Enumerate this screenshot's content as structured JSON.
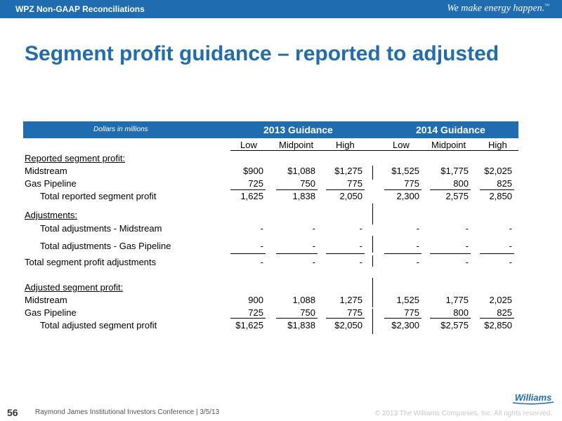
{
  "header": {
    "section": "WPZ Non-GAAP Reconciliations",
    "tagline": "We make energy happen.",
    "tm": "™"
  },
  "title": "Segment profit guidance – reported to adjusted",
  "table": {
    "units": "Dollars in millions",
    "group_2013": "2013 Guidance",
    "group_2014": "2014 Guidance",
    "cols": [
      "Low",
      "Midpoint",
      "High",
      "Low",
      "Midpoint",
      "High"
    ],
    "rows": [
      {
        "label": "Reported segment profit:",
        "values": []
      },
      {
        "label": "Midstream",
        "values": [
          "$900",
          "$1,088",
          "$1,275",
          "$1,525",
          "$1,775",
          "$2,025"
        ]
      },
      {
        "label": "Gas Pipeline",
        "values": [
          "725",
          "750",
          "775",
          "775",
          "800",
          "825"
        ]
      },
      {
        "label": "Total reported segment profit",
        "values": [
          "1,625",
          "1,838",
          "2,050",
          "2,300",
          "2,575",
          "2,850"
        ]
      },
      {
        "label": "Adjustments:",
        "values": []
      },
      {
        "label": "Total adjustments - Midstream",
        "values": [
          "-",
          "-",
          "-",
          "-",
          "-",
          "-"
        ]
      },
      {
        "label": "Total adjustments - Gas Pipeline",
        "values": [
          "-",
          "-",
          "-",
          "-",
          "-",
          "-"
        ]
      },
      {
        "label": "Total segment profit adjustments",
        "values": [
          "-",
          "-",
          "-",
          "-",
          "-",
          "-"
        ]
      },
      {
        "label": "Adjusted segment profit:",
        "values": []
      },
      {
        "label": "Midstream",
        "values": [
          "900",
          "1,088",
          "1,275",
          "1,525",
          "1,775",
          "2,025"
        ]
      },
      {
        "label": "Gas Pipeline",
        "values": [
          "725",
          "750",
          "775",
          "775",
          "800",
          "825"
        ]
      },
      {
        "label": "Total adjusted segment profit",
        "values": [
          "$1,625",
          "$1,838",
          "$2,050",
          "$2,300",
          "$2,575",
          "$2,850"
        ]
      }
    ]
  },
  "footer": {
    "page": "56",
    "conference": "Raymond James Institutional Investors Conference  |  3/5/13",
    "copyright": "© 2013 The Williams Companies, Inc. All rights reserved."
  },
  "logo": {
    "text": "Williams",
    "color": "#1f6cb0"
  },
  "colors": {
    "brand_blue": "#1f6cb0"
  }
}
